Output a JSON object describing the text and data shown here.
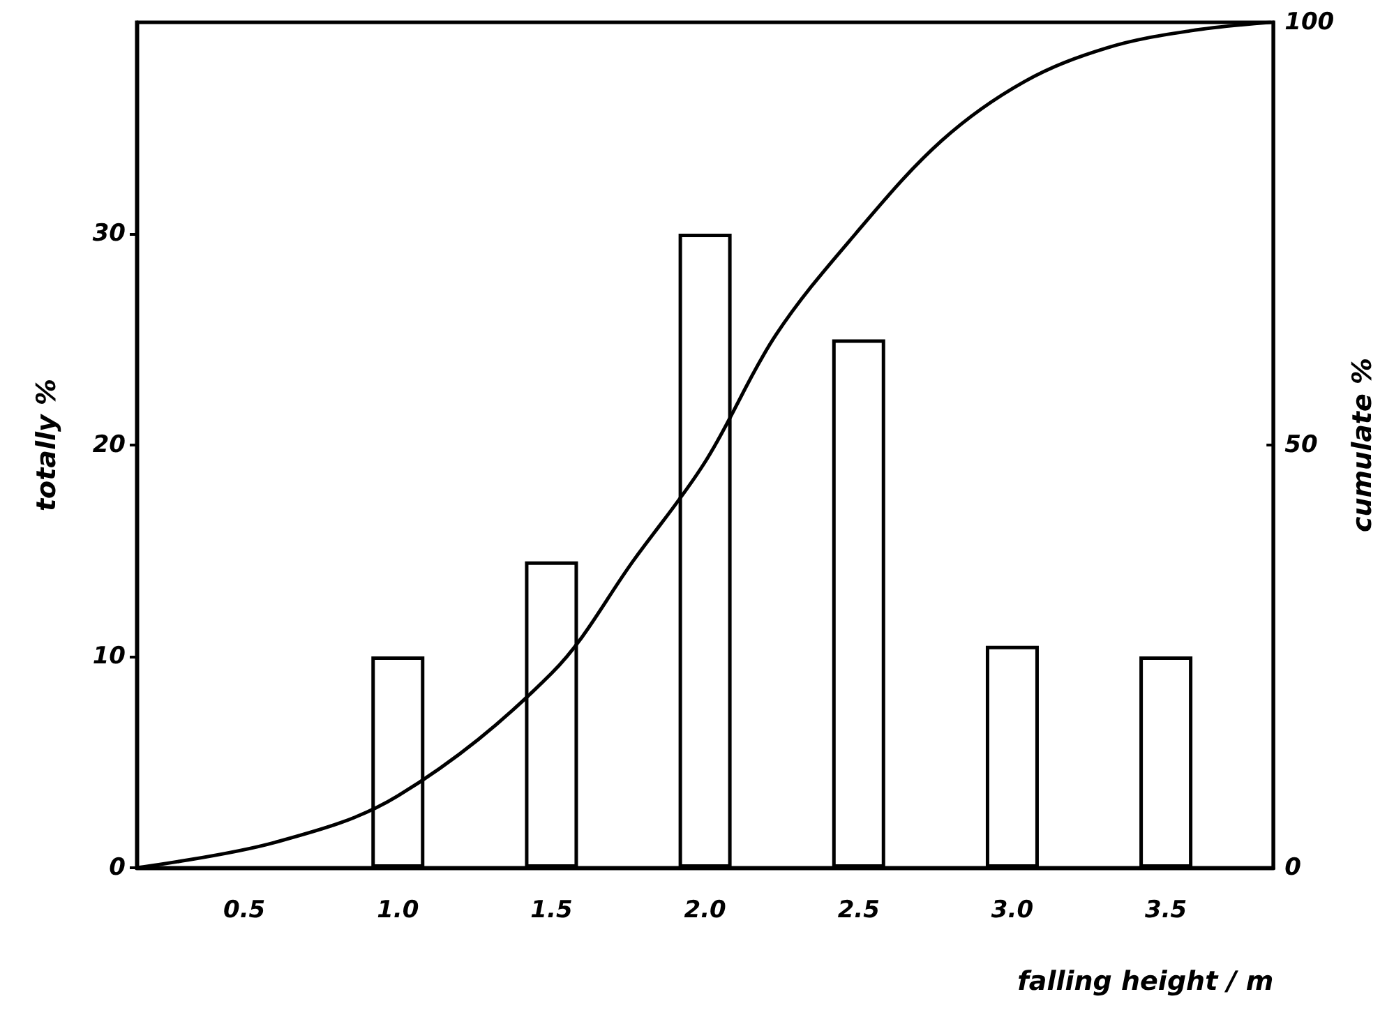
{
  "chart_data": {
    "type": "bar",
    "xlabel": "falling height / m",
    "ylabel": "totally %",
    "y2label": "cumulate %",
    "x": [
      1.0,
      1.5,
      2.0,
      2.5,
      3.0,
      3.5
    ],
    "series": [
      {
        "color": "#ffffff",
        "values": [
          10,
          14.5,
          30,
          25,
          10.5,
          10
        ]
      },
      {
        "type": "line",
        "axis": "y2",
        "color": "#000000",
        "x": [
          0.15,
          0.6,
          1.0,
          1.5,
          1.77,
          2.0,
          2.23,
          2.49,
          2.77,
          3.04,
          3.31,
          3.58,
          3.84
        ],
        "values": [
          0,
          3,
          8.5,
          23,
          36.5,
          48,
          63,
          75,
          86,
          93,
          97,
          99,
          100
        ]
      }
    ],
    "xlim": [
      0.15,
      3.85
    ],
    "xticks": [
      {
        "value": 0.5,
        "label": "0.5"
      },
      {
        "value": 1.0,
        "label": "1.0"
      },
      {
        "value": 1.5,
        "label": "1.5"
      },
      {
        "value": 2.0,
        "label": "2.0"
      },
      {
        "value": 2.5,
        "label": "2.5"
      },
      {
        "value": 3.0,
        "label": "3.0"
      },
      {
        "value": 3.5,
        "label": "3.5"
      }
    ],
    "ylim": [
      0,
      40
    ],
    "yticks": [
      0,
      10,
      20,
      30
    ],
    "y2lim": [
      0,
      100
    ],
    "y2ticks": [
      0,
      50,
      100
    ],
    "marker": "none",
    "line_style": "solid",
    "grid": false
  }
}
